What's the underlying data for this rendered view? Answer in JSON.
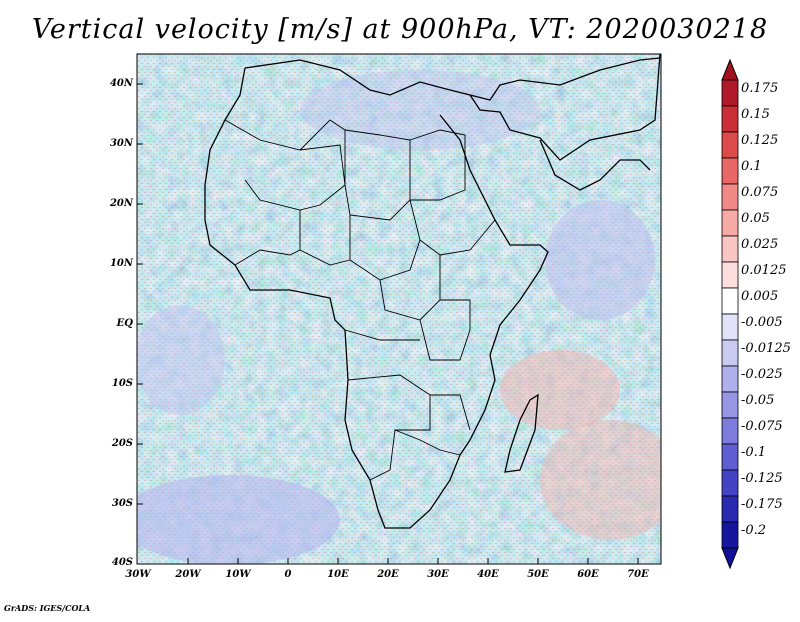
{
  "title": "Vertical velocity [m/s] at 900hPa, VT: 2020030218",
  "credit": "GrADS: IGES/COLA",
  "axes": {
    "lat_labels": [
      "40N",
      "30N",
      "20N",
      "10N",
      "EQ",
      "10S",
      "20S",
      "30S",
      "40S"
    ],
    "lon_labels": [
      "30W",
      "20W",
      "10W",
      "0",
      "10E",
      "20E",
      "30E",
      "40E",
      "50E",
      "60E",
      "70E"
    ]
  },
  "colorbar": {
    "labels": [
      "0.175",
      "0.15",
      "0.125",
      "0.1",
      "0.075",
      "0.05",
      "0.025",
      "0.0125",
      "0.005",
      "-0.005",
      "-0.0125",
      "-0.025",
      "-0.05",
      "-0.075",
      "-0.1",
      "-0.125",
      "-0.175",
      "-0.2"
    ],
    "colors": [
      "#b0192a",
      "#c92f35",
      "#dd4a4a",
      "#e96767",
      "#f18a86",
      "#f6aaa6",
      "#f9c6c3",
      "#fcdede",
      "#ffffff",
      "#e2e2f8",
      "#cacaf2",
      "#b0b0ec",
      "#9696e4",
      "#7c7cdc",
      "#5f5fd2",
      "#4343c4",
      "#2a2ab0",
      "#1515a0"
    ],
    "top_color": "#a01020",
    "bottom_color": "#10109a"
  },
  "colors": {
    "land_border": "#000000",
    "positive": "#f2a0a0",
    "negative": "#a0a0ee"
  }
}
